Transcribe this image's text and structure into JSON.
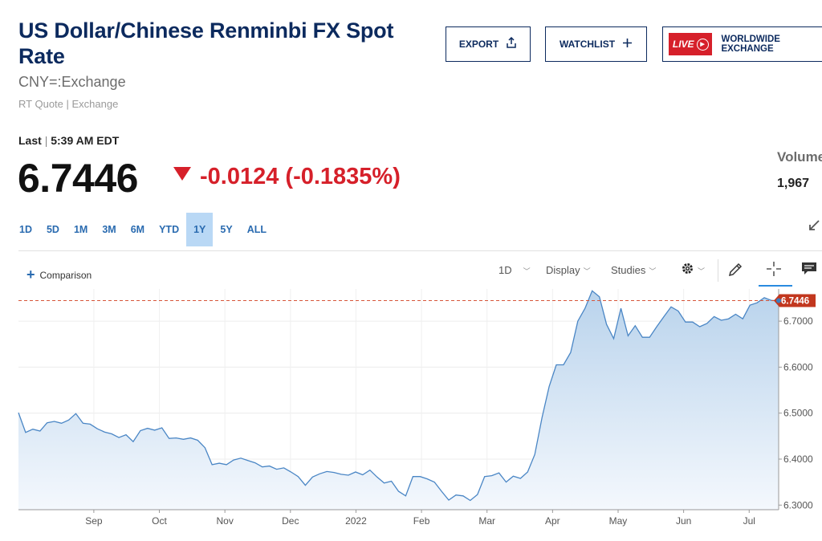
{
  "header": {
    "title": "US Dollar/Chinese Renminbi FX Spot Rate",
    "symbol": "CNY=:Exchange",
    "quote_type": "RT Quote | Exchange"
  },
  "buttons": {
    "export_label": "EXPORT",
    "watchlist_label": "WATCHLIST",
    "live_label": "LIVE",
    "live_text": "WORLDWIDE EXCHANGE"
  },
  "quote": {
    "last_label": "Last",
    "separator": "|",
    "time": "5:39 AM EDT",
    "price": "6.7446",
    "change": "-0.0124 (-0.1835%)",
    "volume_label": "Volume",
    "volume_value": "1,967"
  },
  "colors": {
    "title": "#0c2a5e",
    "down": "#d6202a",
    "line": "#4a86c5",
    "area_top": "#b9d3ec",
    "area_bottom": "#f4f8fd",
    "last_price_line": "#d6553a"
  },
  "ranges": [
    "1D",
    "5D",
    "1M",
    "3M",
    "6M",
    "YTD",
    "1Y",
    "5Y",
    "ALL"
  ],
  "active_range": "1Y",
  "toolbar": {
    "comparison_label": "Comparison",
    "interval_label": "1D",
    "display_label": "Display",
    "studies_label": "Studies",
    "icons": [
      "settings-icon",
      "draw-pencil-icon",
      "crosshair-icon",
      "comment-icon"
    ]
  },
  "chart_data": {
    "type": "area",
    "title": "",
    "xlabel": "",
    "ylabel": "",
    "x_tick_labels": [
      "Sep",
      "Oct",
      "Nov",
      "Dec",
      "2022",
      "Feb",
      "Mar",
      "Apr",
      "May",
      "Jun",
      "Jul"
    ],
    "y_ticks": [
      6.3,
      6.4,
      6.5,
      6.6,
      6.7
    ],
    "y_tick_labels": [
      "6.3000",
      "6.4000",
      "6.5000",
      "6.6000",
      "6.7000"
    ],
    "ylim": [
      6.29,
      6.77
    ],
    "last_value": 6.7446,
    "last_value_label": "6.7446",
    "grid": "horizontal",
    "series": [
      {
        "values": [
          6.501,
          6.458,
          6.465,
          6.461,
          6.479,
          6.482,
          6.478,
          6.485,
          6.499,
          6.478,
          6.476,
          6.466,
          6.459,
          6.455,
          6.447,
          6.453,
          6.438,
          6.462,
          6.467,
          6.463,
          6.468,
          6.445,
          6.446,
          6.443,
          6.446,
          6.441,
          6.425,
          6.388,
          6.391,
          6.388,
          6.398,
          6.402,
          6.397,
          6.392,
          6.383,
          6.385,
          6.378,
          6.381,
          6.372,
          6.362,
          6.343,
          6.361,
          6.368,
          6.373,
          6.371,
          6.367,
          6.365,
          6.372,
          6.366,
          6.376,
          6.361,
          6.348,
          6.352,
          6.33,
          6.32,
          6.362,
          6.362,
          6.357,
          6.35,
          6.33,
          6.311,
          6.322,
          6.32,
          6.31,
          6.323,
          6.362,
          6.364,
          6.37,
          6.35,
          6.363,
          6.358,
          6.372,
          6.41,
          6.49,
          6.558,
          6.605,
          6.605,
          6.632,
          6.7,
          6.728,
          6.766,
          6.753,
          6.693,
          6.662,
          6.728,
          6.668,
          6.69,
          6.665,
          6.665,
          6.688,
          6.71,
          6.731,
          6.722,
          6.698,
          6.698,
          6.688,
          6.695,
          6.71,
          6.702,
          6.705,
          6.715,
          6.705,
          6.735,
          6.74,
          6.751,
          6.745,
          6.7446
        ]
      }
    ]
  }
}
